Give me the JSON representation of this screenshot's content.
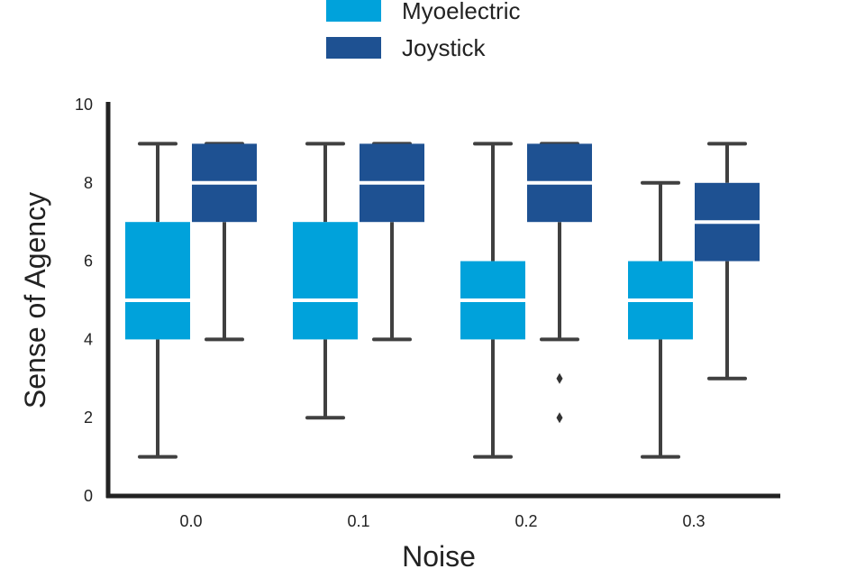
{
  "chart_data": {
    "type": "box",
    "xlabel": "Noise",
    "ylabel": "Sense of Agency",
    "categories": [
      "0.0",
      "0.1",
      "0.2",
      "0.3"
    ],
    "ylim": [
      0,
      10
    ],
    "yticks": [
      "0",
      "2",
      "4",
      "6",
      "8",
      "10"
    ],
    "grid": false,
    "legend_position": "top-center",
    "series": [
      {
        "name": "Myoelectric",
        "color": "#00A2DB",
        "boxes": [
          {
            "category": "0.0",
            "whisker_low": 1,
            "q1": 4,
            "median": 5,
            "q3": 7,
            "whisker_high": 9,
            "outliers": []
          },
          {
            "category": "0.1",
            "whisker_low": 2,
            "q1": 4,
            "median": 5,
            "q3": 7,
            "whisker_high": 9,
            "outliers": []
          },
          {
            "category": "0.2",
            "whisker_low": 1,
            "q1": 4,
            "median": 5,
            "q3": 6,
            "whisker_high": 9,
            "outliers": []
          },
          {
            "category": "0.3",
            "whisker_low": 1,
            "q1": 4,
            "median": 5,
            "q3": 6,
            "whisker_high": 8,
            "outliers": []
          }
        ]
      },
      {
        "name": "Joystick",
        "color": "#1E5192",
        "boxes": [
          {
            "category": "0.0",
            "whisker_low": 4,
            "q1": 7,
            "median": 8,
            "q3": 9,
            "whisker_high": 9,
            "outliers": []
          },
          {
            "category": "0.1",
            "whisker_low": 4,
            "q1": 7,
            "median": 8,
            "q3": 9,
            "whisker_high": 9,
            "outliers": []
          },
          {
            "category": "0.2",
            "whisker_low": 4,
            "q1": 7,
            "median": 8,
            "q3": 9,
            "whisker_high": 9,
            "outliers": [
              3,
              2
            ]
          },
          {
            "category": "0.3",
            "whisker_low": 3,
            "q1": 6,
            "median": 7,
            "q3": 8,
            "whisker_high": 9,
            "outliers": []
          }
        ]
      }
    ],
    "colors": {
      "axis": "#222222",
      "whisker": "#404040",
      "median": "#ffffff"
    }
  }
}
